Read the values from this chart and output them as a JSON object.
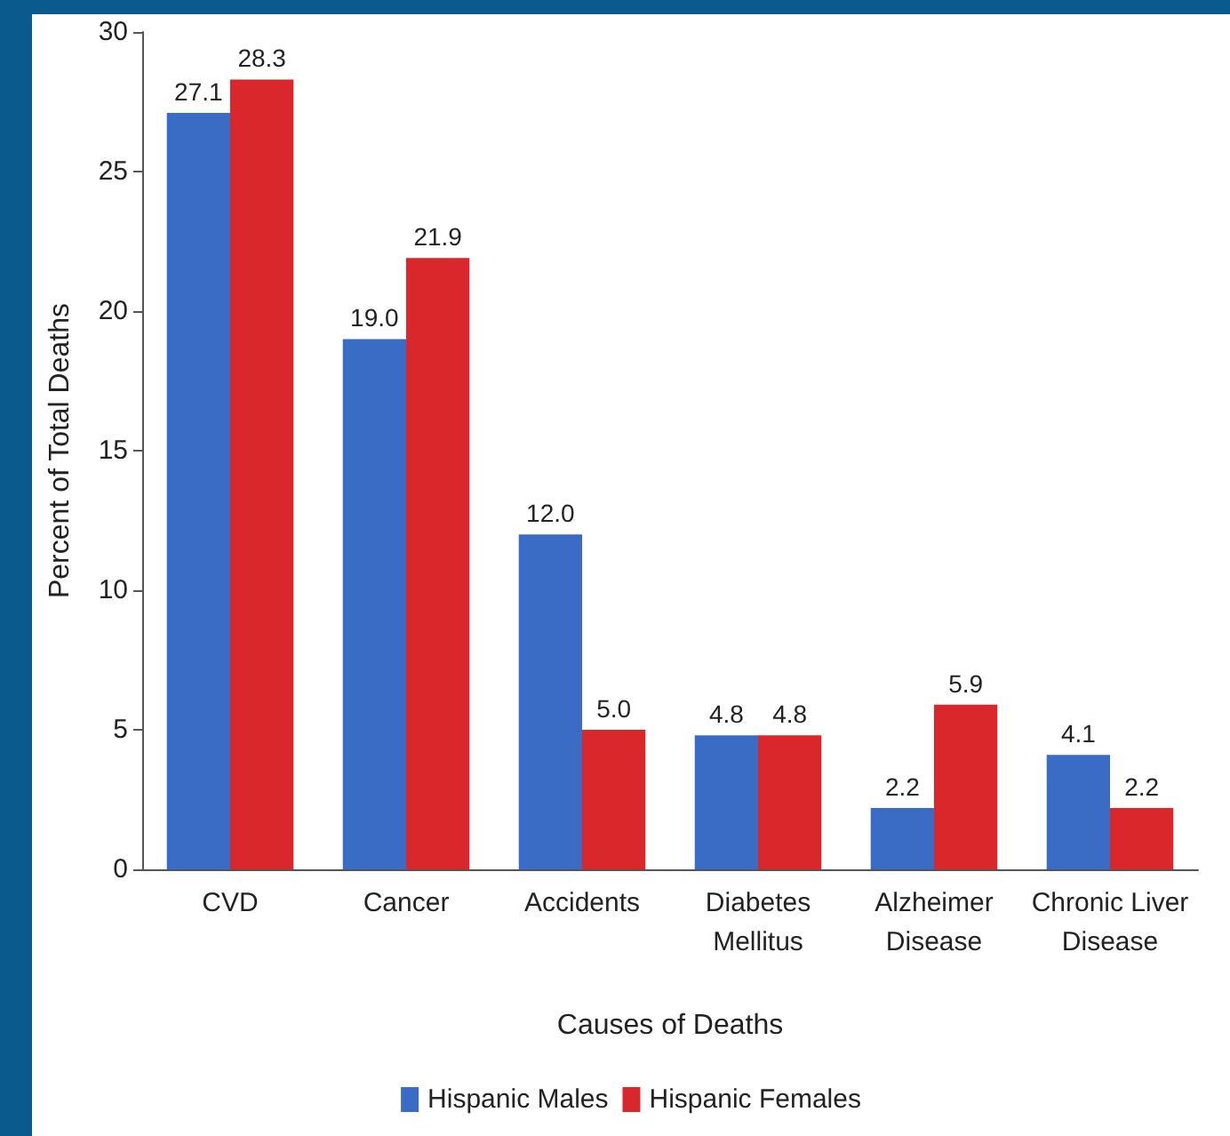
{
  "chart_data": {
    "type": "bar",
    "xlabel": "Causes of Deaths",
    "ylabel": "Percent of Total Deaths",
    "categories": [
      "CVD",
      "Cancer",
      "Accidents",
      "Diabetes\nMellitus",
      "Alzheimer\nDisease",
      "Chronic Liver\nDisease"
    ],
    "series": [
      {
        "name": "Hispanic Males",
        "color": "#3a6cc6",
        "values": [
          27.1,
          19.0,
          12.0,
          4.8,
          2.2,
          4.1
        ],
        "value_labels": [
          "27.1",
          "19.0",
          "12.0",
          "4.8",
          "2.2",
          "4.1"
        ]
      },
      {
        "name": "Hispanic Females",
        "color": "#d9272b",
        "values": [
          28.3,
          21.9,
          5.0,
          4.8,
          5.9,
          2.2
        ],
        "value_labels": [
          "28.3",
          "21.9",
          "5.0",
          "4.8",
          "5.9",
          "2.2"
        ]
      }
    ],
    "ylim": [
      0,
      30
    ],
    "yticks": [
      0,
      5,
      10,
      15,
      20,
      25,
      30
    ],
    "grid": false,
    "legend": "bottom"
  }
}
